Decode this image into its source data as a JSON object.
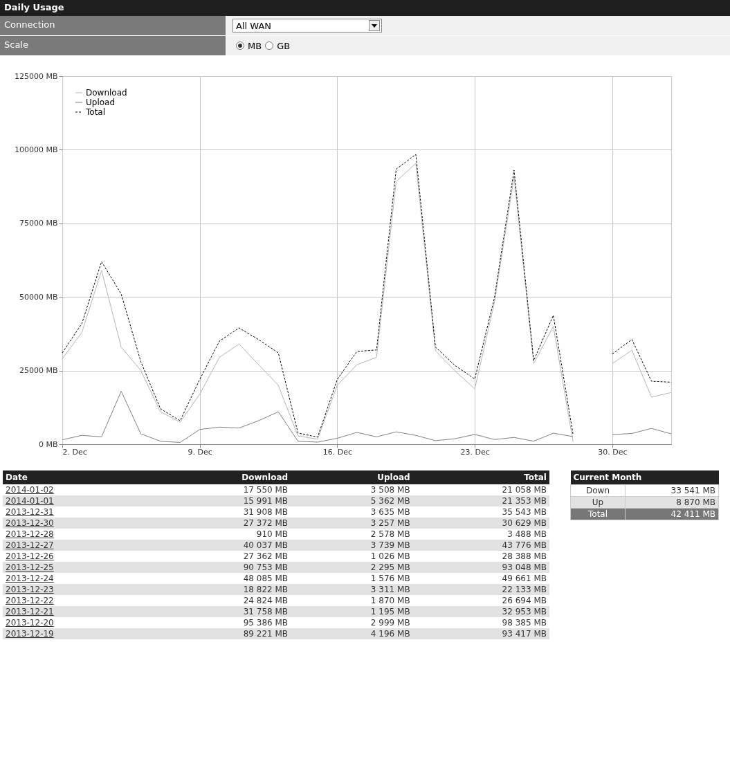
{
  "chart_data": {
    "type": "line",
    "title": "Daily Usage",
    "annotations": [
      "Connection",
      "All WAN",
      "Scale",
      "MB",
      "GB",
      "Date",
      "Current Month",
      "Down",
      "33 541 MB",
      "Up",
      "8 870 MB",
      "Total",
      "42 411 MB",
      "2014-01-02",
      "17 550 MB",
      "3 508 MB",
      "21 058 MB",
      "2014-01-01",
      "15 991 MB",
      "5 362 MB",
      "21 353 MB",
      "2013-12-31",
      "31 908 MB",
      "3 635 MB",
      "35 543 MB",
      "2013-12-30",
      "27 372 MB",
      "3 257 MB",
      "30 629 MB",
      "2013-12-28",
      "910 MB",
      "2 578 MB",
      "3 488 MB",
      "2013-12-27",
      "40 037 MB",
      "3 739 MB",
      "43 776 MB",
      "2013-12-26",
      "27 362 MB",
      "1 026 MB",
      "28 388 MB",
      "2013-12-25",
      "90 753 MB",
      "2 295 MB",
      "93 048 MB",
      "2013-12-24",
      "48 085 MB",
      "1 576 MB",
      "49 661 MB",
      "2013-12-23",
      "18 822 MB",
      "3 311 MB",
      "22 133 MB",
      "2013-12-22",
      "24 824 MB",
      "1 870 MB",
      "26 694 MB",
      "2013-12-21",
      "31 758 MB",
      "1 195 MB",
      "32 953 MB",
      "2013-12-20",
      "95 386 MB",
      "2 999 MB",
      "98 385 MB",
      "2013-12-19",
      "89 221 MB",
      "4 196 MB",
      "93 417 MB"
    ],
    "x": [
      "2013-12-02",
      "2013-12-03",
      "2013-12-04",
      "2013-12-05",
      "2013-12-06",
      "2013-12-07",
      "2013-12-08",
      "2013-12-09",
      "2013-12-10",
      "2013-12-11",
      "2013-12-12",
      "2013-12-13",
      "2013-12-14",
      "2013-12-15",
      "2013-12-16",
      "2013-12-17",
      "2013-12-18",
      "2013-12-19",
      "2013-12-20",
      "2013-12-21",
      "2013-12-22",
      "2013-12-23",
      "2013-12-24",
      "2013-12-25",
      "2013-12-26",
      "2013-12-27",
      "2013-12-28",
      "2013-12-29",
      "2013-12-30",
      "2013-12-31",
      "2014-01-01",
      "2014-01-02"
    ],
    "xlim": [
      "2013-12-02",
      "2014-01-02"
    ],
    "xticks": [
      {
        "value": "2013-12-02",
        "label": "2. Dec"
      },
      {
        "value": "2013-12-09",
        "label": "9. Dec"
      },
      {
        "value": "2013-12-16",
        "label": "16. Dec"
      },
      {
        "value": "2013-12-23",
        "label": "23. Dec"
      },
      {
        "value": "2013-12-30",
        "label": "30. Dec"
      }
    ],
    "ylim": [
      0,
      125000
    ],
    "yticks": [
      {
        "value": 0,
        "label": "0 MB"
      },
      {
        "value": 25000,
        "label": "25000 MB"
      },
      {
        "value": 50000,
        "label": "50000 MB"
      },
      {
        "value": 75000,
        "label": "75000 MB"
      },
      {
        "value": 100000,
        "label": "100000 MB"
      },
      {
        "value": 125000,
        "label": "125000 MB"
      }
    ],
    "grid": true,
    "legend": "top left",
    "series": [
      {
        "name": "Download",
        "color": "#b4b4b4",
        "line_style": "solid",
        "values": [
          29000,
          38000,
          59000,
          33000,
          25000,
          11000,
          7500,
          17000,
          29500,
          34000,
          27000,
          20000,
          2800,
          1700,
          20000,
          27000,
          29500,
          89221,
          95386,
          31758,
          24824,
          18822,
          48085,
          90753,
          27362,
          40037,
          910,
          null,
          27372,
          31908,
          15991,
          17550
        ]
      },
      {
        "name": "Upload",
        "color": "#808080",
        "line_style": "solid",
        "values": [
          1500,
          3000,
          2500,
          18000,
          3500,
          1000,
          600,
          5000,
          5800,
          5500,
          8000,
          11000,
          1000,
          700,
          2000,
          4000,
          2500,
          4196,
          2999,
          1195,
          1870,
          3311,
          1576,
          2295,
          1026,
          3739,
          2578,
          null,
          3257,
          3635,
          5362,
          3508
        ]
      },
      {
        "name": "Total",
        "color": "#000000",
        "line_style": "dashed",
        "values": [
          31000,
          41000,
          62000,
          51000,
          28000,
          12000,
          8000,
          22000,
          35000,
          39500,
          35500,
          31000,
          3800,
          2400,
          22000,
          31500,
          32000,
          93417,
          98385,
          32953,
          26694,
          22133,
          49661,
          93048,
          28388,
          43776,
          3488,
          null,
          30629,
          35543,
          21353,
          21058
        ]
      }
    ]
  }
}
